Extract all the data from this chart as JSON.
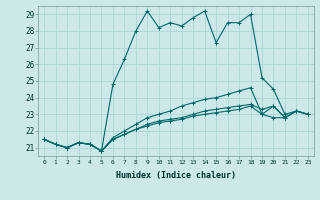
{
  "xlabel": "Humidex (Indice chaleur)",
  "bg_color": "#cce8e8",
  "grid_color": "#b0d8d8",
  "line_color": "#006868",
  "xlim": [
    -0.5,
    23.5
  ],
  "ylim": [
    20.5,
    29.5
  ],
  "yticks": [
    21,
    22,
    23,
    24,
    25,
    26,
    27,
    28,
    29
  ],
  "xticks": [
    0,
    1,
    2,
    3,
    4,
    5,
    6,
    7,
    8,
    9,
    10,
    11,
    12,
    13,
    14,
    15,
    16,
    17,
    18,
    19,
    20,
    21,
    22,
    23
  ],
  "series": [
    [
      21.5,
      21.2,
      21.0,
      21.3,
      21.2,
      20.8,
      24.8,
      26.3,
      28.0,
      29.2,
      28.2,
      28.5,
      28.3,
      28.8,
      29.2,
      27.3,
      28.5,
      28.5,
      29.0,
      25.2,
      24.5,
      23.0,
      23.2,
      23.0
    ],
    [
      21.5,
      21.2,
      21.0,
      21.3,
      21.2,
      20.8,
      21.5,
      21.8,
      22.1,
      22.3,
      22.5,
      22.6,
      22.7,
      22.9,
      23.0,
      23.1,
      23.2,
      23.3,
      23.5,
      23.0,
      22.8,
      22.8,
      23.2,
      23.0
    ],
    [
      21.5,
      21.2,
      21.0,
      21.3,
      21.2,
      20.8,
      21.5,
      21.8,
      22.1,
      22.4,
      22.6,
      22.7,
      22.8,
      23.0,
      23.2,
      23.3,
      23.4,
      23.5,
      23.6,
      23.3,
      23.5,
      22.8,
      23.2,
      23.0
    ],
    [
      21.5,
      21.2,
      21.0,
      21.3,
      21.2,
      20.8,
      21.6,
      22.0,
      22.4,
      22.8,
      23.0,
      23.2,
      23.5,
      23.7,
      23.9,
      24.0,
      24.2,
      24.4,
      24.6,
      23.0,
      23.5,
      22.8,
      23.2,
      23.0
    ]
  ]
}
